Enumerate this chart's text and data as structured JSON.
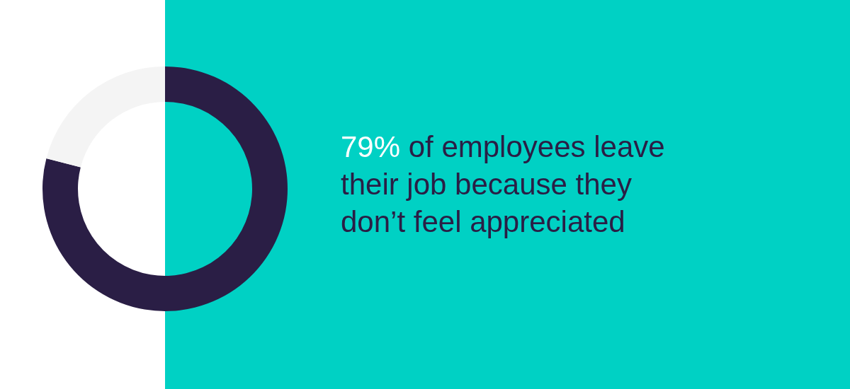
{
  "chart_data": {
    "type": "donut",
    "title": "79% of employees leave their job because they don’t feel appreciated",
    "categories": [
      null,
      null
    ],
    "values": [
      79,
      21
    ],
    "colors": [
      "#2a1e45",
      "#f4f4f4"
    ]
  }
}
